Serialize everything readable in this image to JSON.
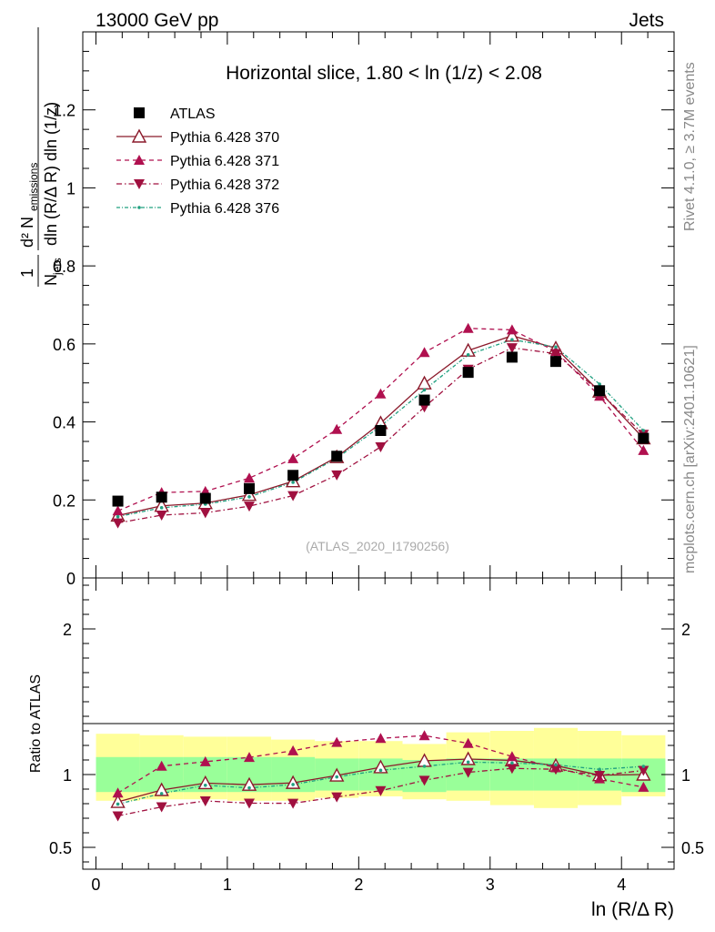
{
  "header": {
    "left": "13000 GeV pp",
    "right": "Jets"
  },
  "side": {
    "rivet": "Rivet 4.1.0, ≥ 3.7M events",
    "mcplots": "mcplots.cern.ch [arXiv:2401.10621]"
  },
  "colors": {
    "data": "#000000",
    "s370": "#8b1a2b",
    "s371": "#b0104f",
    "s372": "#a0103f",
    "s376": "#20a080",
    "band_inner": "#99ff99",
    "band_outer": "#ffff99"
  },
  "chart_data": {
    "type": "scatter",
    "title": "Horizontal slice, 1.80 < ln (1/z) < 2.08",
    "watermark": "(ATLAS_2020_I1790256)",
    "xlabel": "ln (R/Δ R)",
    "ylabel_main": "1/N_jets dN_emissions / dln(R/ΔR) dln(1/z)",
    "ylabel_ratio": "Ratio to ATLAS",
    "xlim": [
      -0.1,
      4.4
    ],
    "ylim_main": [
      0,
      1.4
    ],
    "ylim_ratio": [
      0.35,
      2.35
    ],
    "x_ticks": [
      "0",
      "1",
      "2",
      "3",
      "4"
    ],
    "y_ticks_main": [
      "0",
      "0.2",
      "0.4",
      "0.6",
      "0.8",
      "1",
      "1.2"
    ],
    "y_ticks_ratio": [
      "0.5",
      "1",
      "2"
    ],
    "x": [
      0.167,
      0.5,
      0.833,
      1.167,
      1.5,
      1.833,
      2.167,
      2.5,
      2.833,
      3.167,
      3.5,
      3.833,
      4.167
    ],
    "series": [
      {
        "name": "ATLAS",
        "key": "data",
        "marker": "square",
        "values": [
          0.197,
          0.207,
          0.204,
          0.229,
          0.263,
          0.312,
          0.378,
          0.456,
          0.527,
          0.566,
          0.555,
          0.48,
          0.358
        ]
      },
      {
        "name": "Pythia 6.428 370",
        "key": "s370",
        "marker": "open-triangle",
        "dash": "",
        "values": [
          0.16,
          0.185,
          0.192,
          0.213,
          0.248,
          0.31,
          0.397,
          0.499,
          0.583,
          0.621,
          0.589,
          0.478,
          0.358
        ]
      },
      {
        "name": "Pythia 6.428 371",
        "key": "s371",
        "marker": "triangle-up",
        "dash": "5,4",
        "values": [
          0.172,
          0.219,
          0.222,
          0.256,
          0.306,
          0.381,
          0.472,
          0.578,
          0.64,
          0.636,
          0.581,
          0.466,
          0.327
        ]
      },
      {
        "name": "Pythia 6.428 372",
        "key": "s372",
        "marker": "triangle-down",
        "dash": "6,3,1.5,3",
        "values": [
          0.141,
          0.161,
          0.167,
          0.184,
          0.211,
          0.264,
          0.336,
          0.438,
          0.535,
          0.59,
          0.575,
          0.477,
          0.368
        ]
      },
      {
        "name": "Pythia 6.428 376",
        "key": "s376",
        "marker": "dot",
        "dash": "4,2,1,2",
        "values": [
          0.157,
          0.18,
          0.189,
          0.208,
          0.245,
          0.307,
          0.389,
          0.482,
          0.572,
          0.611,
          0.592,
          0.497,
          0.378
        ]
      }
    ],
    "ratio_bands": {
      "inner": [
        [
          0.88,
          1.12
        ],
        [
          0.88,
          1.12
        ],
        [
          0.88,
          1.12
        ],
        [
          0.88,
          1.12
        ],
        [
          0.88,
          1.12
        ],
        [
          0.89,
          1.11
        ],
        [
          0.89,
          1.11
        ],
        [
          0.88,
          1.1
        ],
        [
          0.89,
          1.11
        ],
        [
          0.89,
          1.11
        ],
        [
          0.89,
          1.11
        ],
        [
          0.89,
          1.11
        ],
        [
          0.88,
          1.11
        ]
      ],
      "outer": [
        [
          0.82,
          1.28
        ],
        [
          0.83,
          1.27
        ],
        [
          0.83,
          1.26
        ],
        [
          0.82,
          1.26
        ],
        [
          0.82,
          1.24
        ],
        [
          0.84,
          1.23
        ],
        [
          0.85,
          1.23
        ],
        [
          0.83,
          1.21
        ],
        [
          0.82,
          1.29
        ],
        [
          0.79,
          1.3
        ],
        [
          0.77,
          1.32
        ],
        [
          0.79,
          1.3
        ],
        [
          0.85,
          1.27
        ]
      ]
    }
  }
}
